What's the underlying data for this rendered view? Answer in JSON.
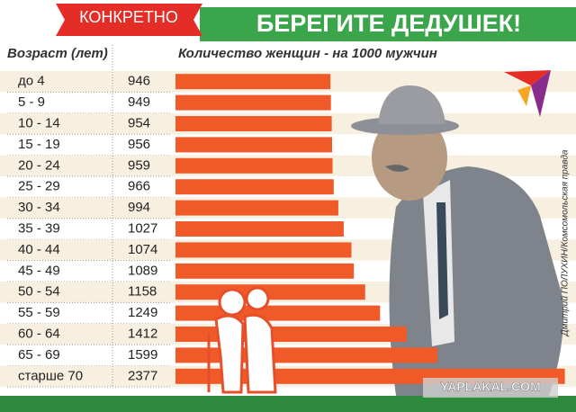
{
  "chart_data": {
    "type": "bar",
    "orientation": "horizontal",
    "badge": "КОНКРЕТНО",
    "title": "БЕРЕГИТЕ ДЕДУШЕК!",
    "category_header": "Возраст (лет)",
    "value_header": "Количество женщин - на 1000 мужчин",
    "categories": [
      "до 4",
      "5 - 9",
      "10 - 14",
      "15 - 19",
      "20 - 24",
      "25 - 29",
      "30 - 34",
      "35 - 39",
      "40 - 44",
      "45 - 49",
      "50 - 54",
      "55 - 59",
      "60 - 64",
      "65 - 69",
      "старше 70"
    ],
    "values": [
      946,
      949,
      954,
      956,
      959,
      966,
      994,
      1027,
      1074,
      1089,
      1158,
      1249,
      1412,
      1599,
      2377
    ],
    "color": "#f05a28",
    "credit": "Дмитрий ПОЛУХИН/Комсомольская правда",
    "watermark": "YAPLAKAL.COM"
  }
}
